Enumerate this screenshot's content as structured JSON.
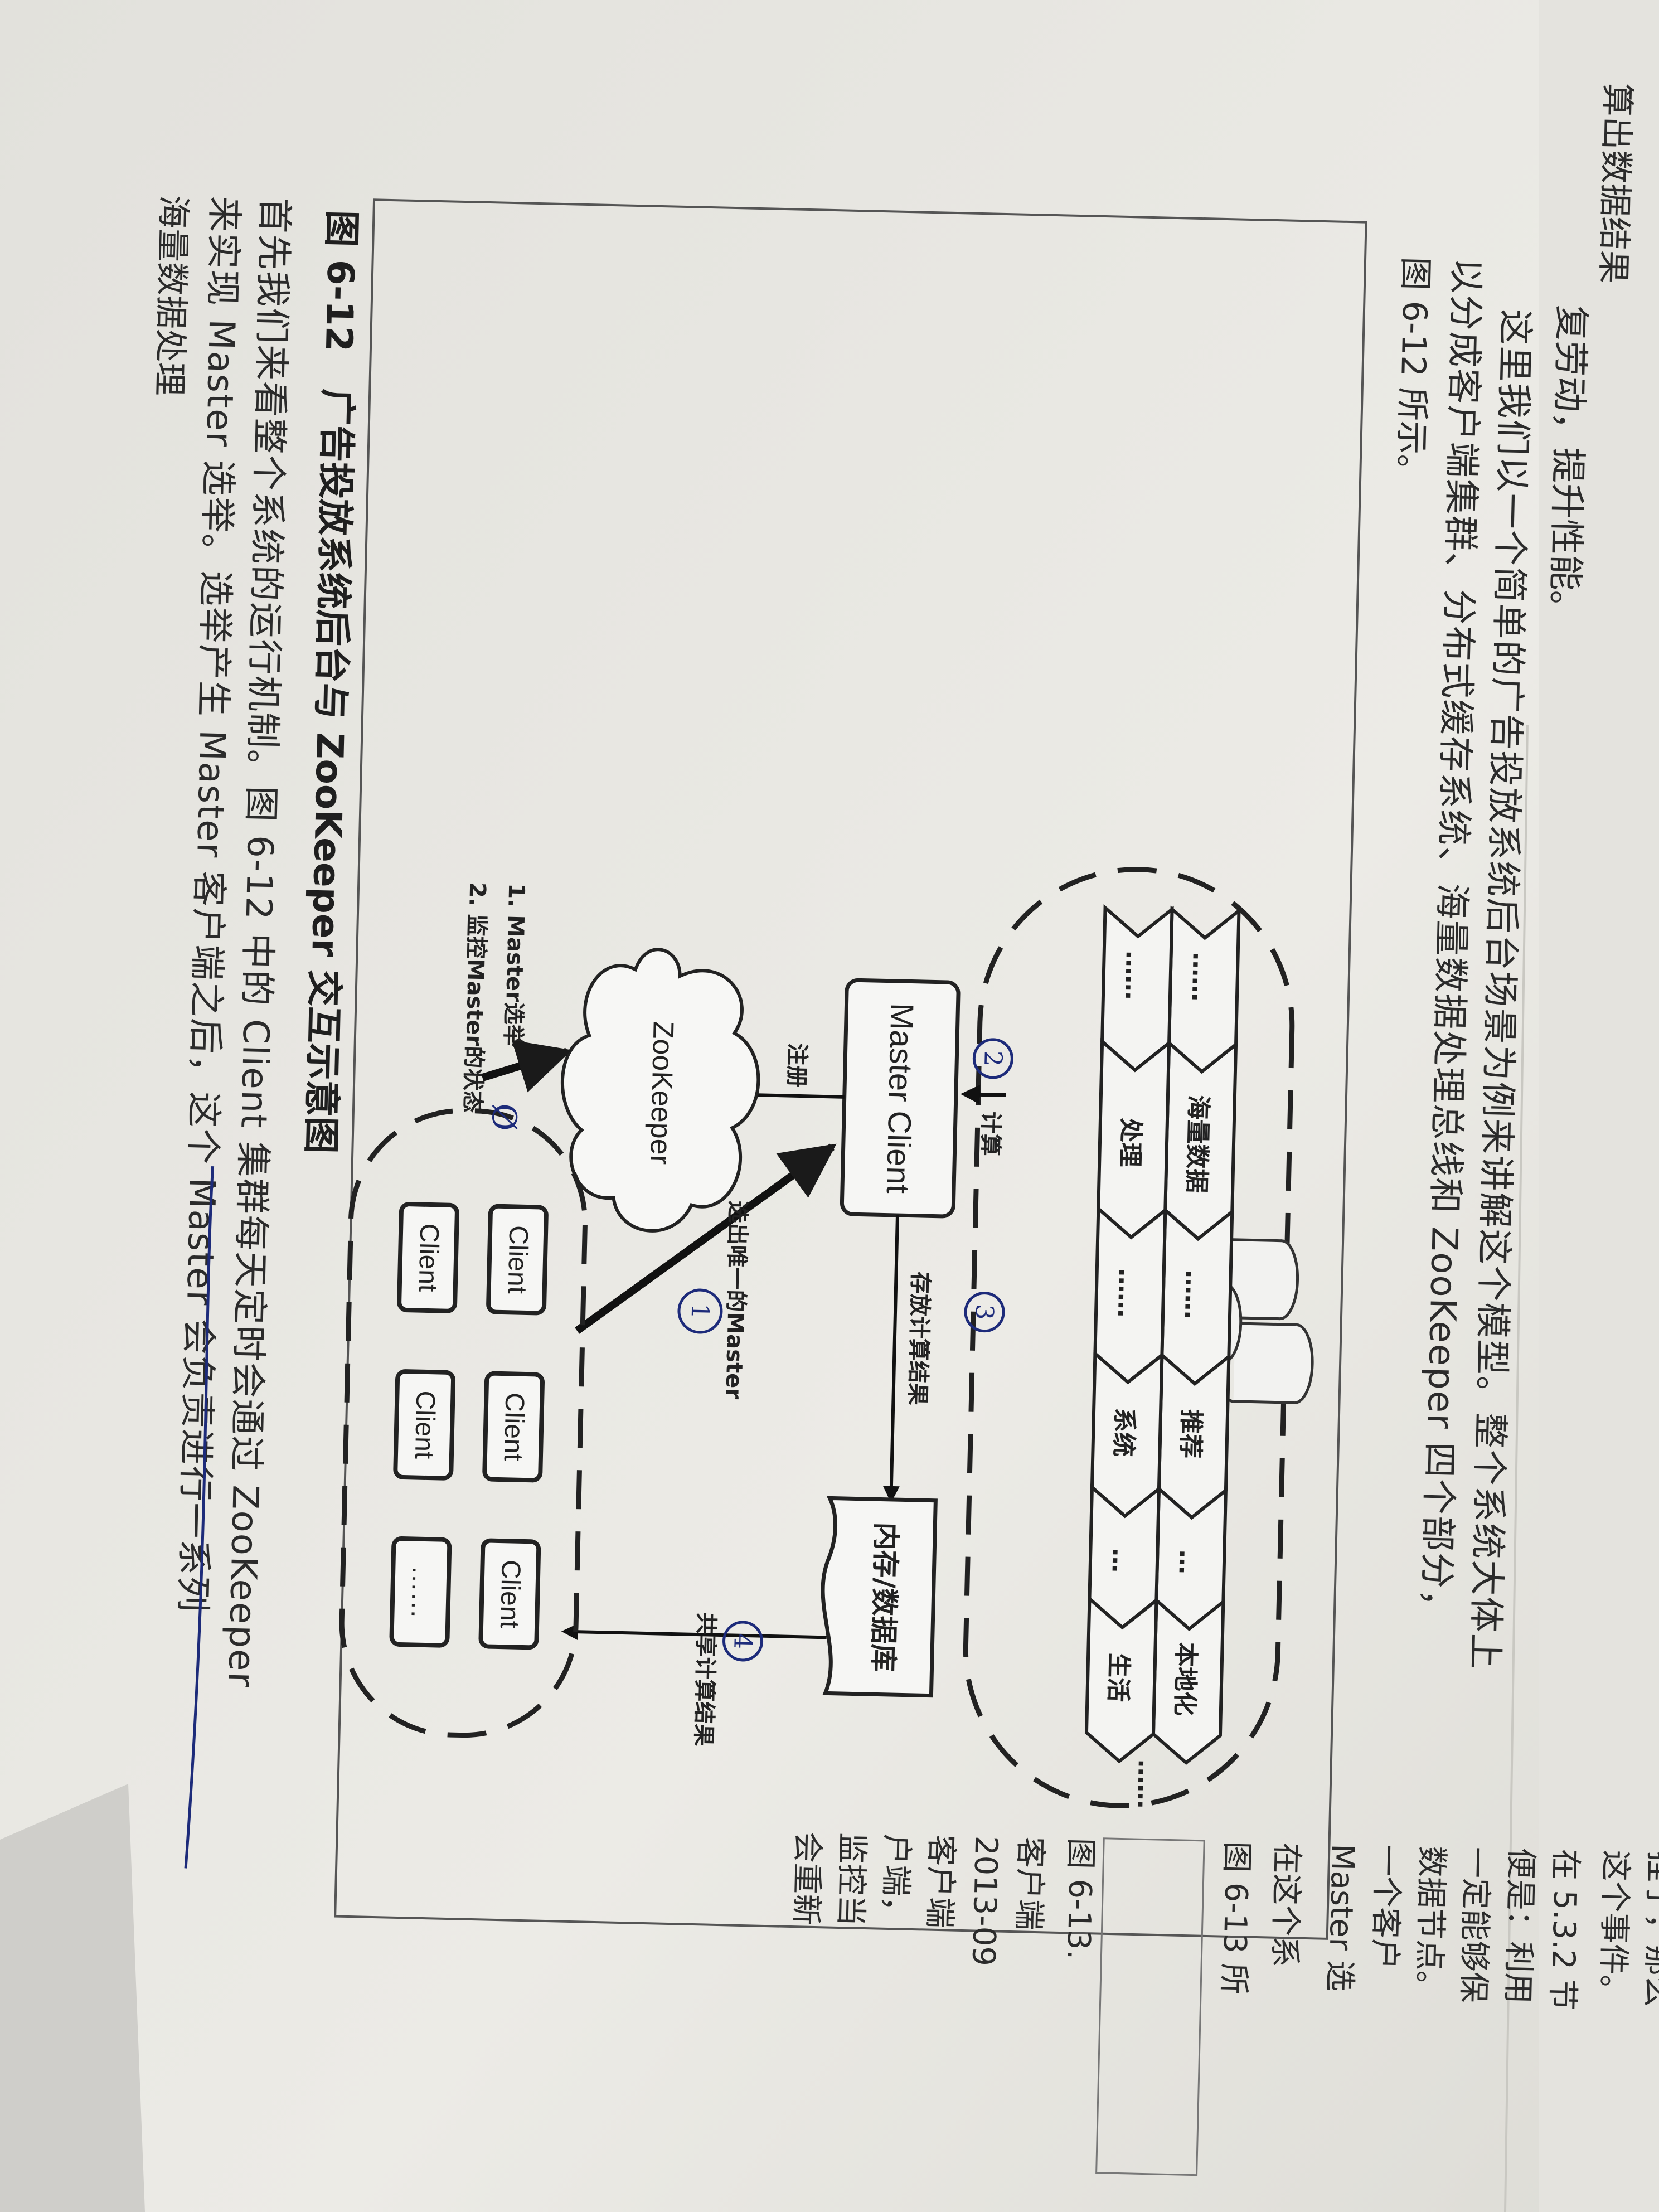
{
  "page_left_text": {
    "line0": "算出数据结果",
    "line1": "复劳动，提升性能。",
    "line2": "这里我们以一个简单的广告投放系统后台场景为例来讲解这个模型。整个系统大体上",
    "line3": "以分成客户端集群、分布式缓存系统、海量数据处理总线和 ZooKeeper 四个部分，",
    "line4": "图 6-12 所示。"
  },
  "diagram": {
    "bus_segments": [
      "……",
      "海量数据",
      "处理",
      "……",
      "推荐",
      "系统",
      "…",
      "本地化",
      "生活",
      "……"
    ],
    "master_client": "Master Client",
    "zookeeper": "ZooKeeper",
    "memory_db": "内存/数据库",
    "clients": [
      "Client",
      "Client",
      "Client",
      "Client",
      "Client",
      "……"
    ],
    "labels": {
      "compute": "计算",
      "register": "注册",
      "store_results": "存放计算结果",
      "share_results": "共享计算结果",
      "elect_master": "选出唯一的Master",
      "zk_item1": "1. Master选举",
      "zk_item2": "2. 监控Master的状态"
    },
    "hand_marks": [
      "2",
      "3",
      "1",
      "4",
      "Ø"
    ]
  },
  "caption": "图 6-12　广告投放系统后台与 ZooKeeper 交互示意图",
  "page_bottom_text": {
    "line1": "首先我们来看整个系统的运行机制。图 6-12 中的 Client 集群每天定时会通过 ZooKeeper",
    "line2": "来实现 Master 选举。选举产生 Master 客户端之后，这个 Master 会负责进行一系列",
    "line3": "海量数据处理"
  },
  "right_page_text": {
    "lines": [
      "挂了，那么",
      "这个事件。",
      "在 5.3.2 节",
      "便是：利用",
      "一定能够保",
      "数据节点。",
      "一个客户",
      "Master 选",
      "在这个系",
      "图 6-13 所",
      "图 6-13.",
      "客户端",
      "2013-09",
      "客户端",
      "户端，",
      "监控当",
      "会重新"
    ]
  }
}
